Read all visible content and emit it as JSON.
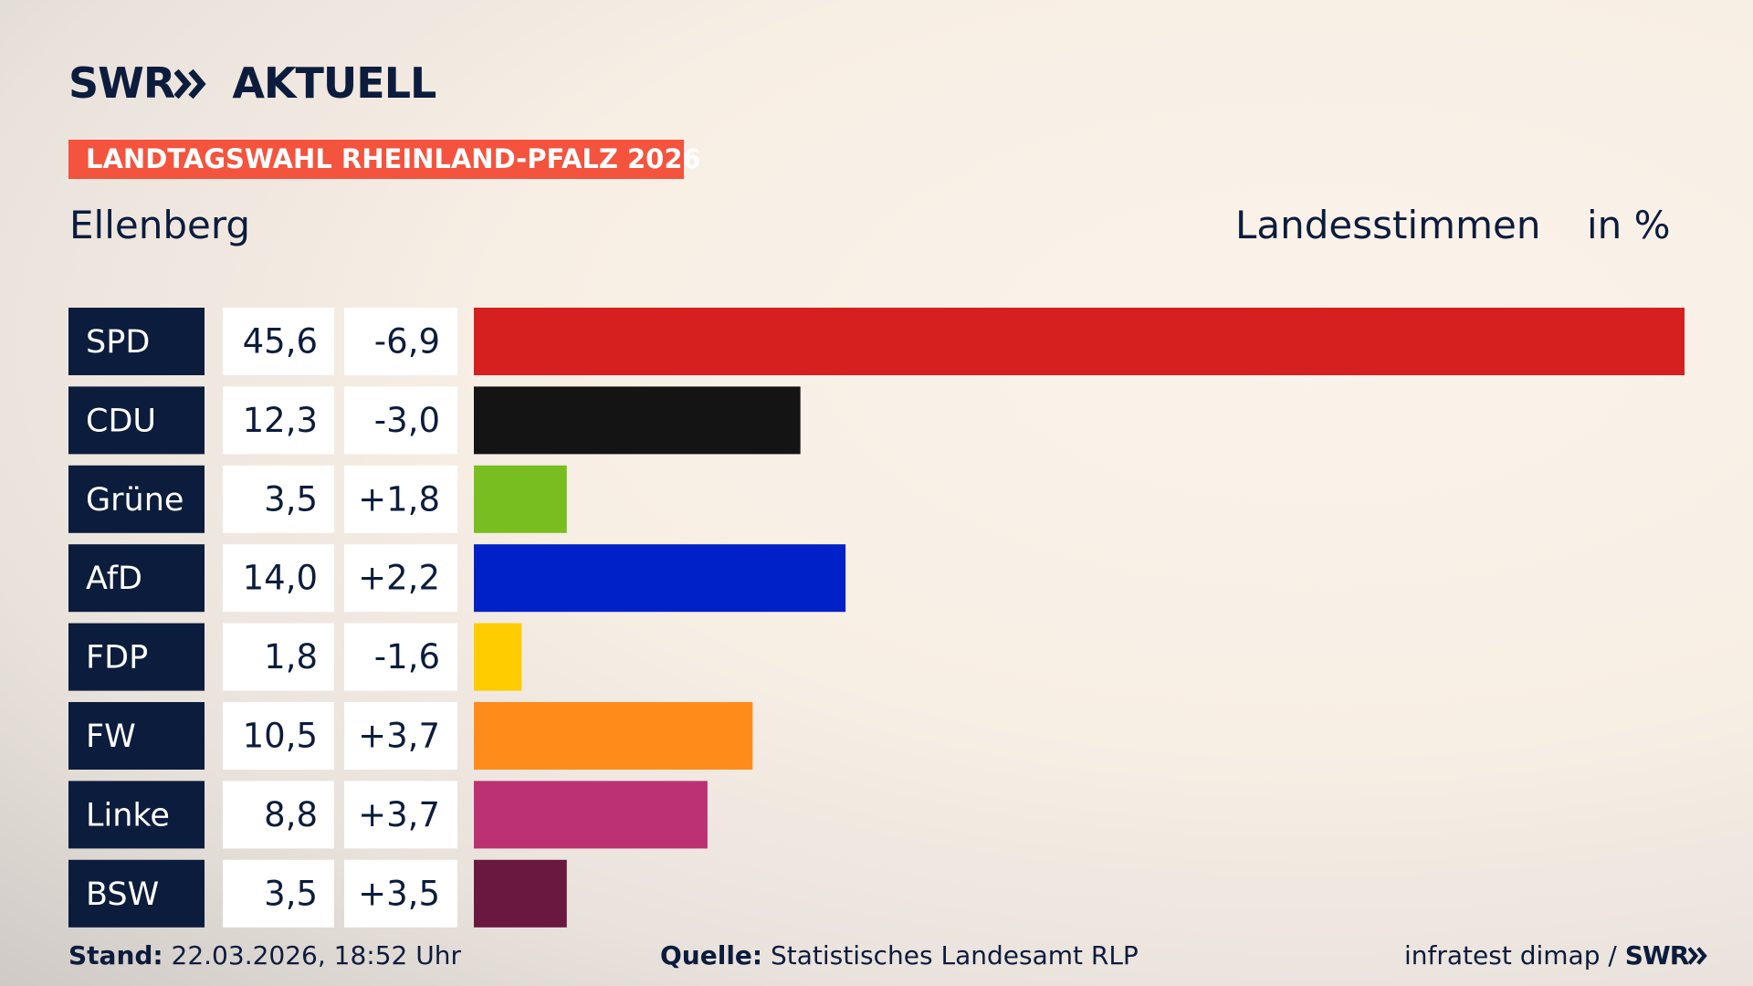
{
  "brand": {
    "name": "SWR",
    "product": "AKTUELL"
  },
  "chart_data": {
    "type": "bar",
    "title": "LANDTAGSWAHL RHEINLAND-PFALZ 2026",
    "subtitle": "Ellenberg",
    "measure": "Landesstimmen",
    "unit": "in %",
    "categories": [
      "SPD",
      "CDU",
      "Grüne",
      "AfD",
      "FDP",
      "FW",
      "Linke",
      "BSW"
    ],
    "values": [
      45.6,
      12.3,
      3.5,
      14.0,
      1.8,
      10.5,
      8.8,
      3.5
    ],
    "value_labels": [
      "45,6",
      "12,3",
      "3,5",
      "14,0",
      "1,8",
      "10,5",
      "8,8",
      "3,5"
    ],
    "changes": [
      -6.9,
      -3.0,
      1.8,
      2.2,
      -1.6,
      3.7,
      3.7,
      3.5
    ],
    "change_labels": [
      "-6,9",
      "-3,0",
      "+1,8",
      "+2,2",
      "-1,6",
      "+3,7",
      "+3,7",
      "+3,5"
    ],
    "colors": [
      "#d61f1f",
      "#141414",
      "#78be20",
      "#0021c8",
      "#ffcc00",
      "#ff8c1a",
      "#bb3173",
      "#6a1840"
    ]
  },
  "footer": {
    "date_label": "Stand:",
    "date": "22.03.2026, 18:52 Uhr",
    "source_label": "Quelle:",
    "source": "Statistisches Landesamt RLP",
    "credit": "infratest dimap /",
    "credit_brand": "SWR"
  }
}
